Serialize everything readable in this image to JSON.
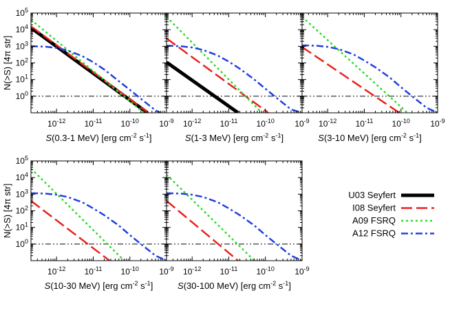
{
  "figure": {
    "ylabel": "N(>S) [4π str]",
    "legend": [
      {
        "name": "U03 Seyfert",
        "color": "#000000",
        "dash": "solid",
        "width": 5
      },
      {
        "name": "I08 Seyfert",
        "color": "#e8211c",
        "dash": "long-dash",
        "width": 2.5
      },
      {
        "name": "A09 FSRQ",
        "color": "#2cdc26",
        "dash": "dot",
        "width": 2.5
      },
      {
        "name": "A12 FSRQ",
        "color": "#1f3fe0",
        "dash": "dash-dot",
        "width": 2.5
      }
    ],
    "reference_line": {
      "y": 1,
      "color": "#000000",
      "style": "dash-dot-dot"
    },
    "y_ticks": [
      {
        "v": 1,
        "label": "10",
        "exp": "0"
      },
      {
        "v": 10,
        "label": "10",
        "exp": "1"
      },
      {
        "v": 100,
        "label": "10",
        "exp": "2"
      },
      {
        "v": 1000,
        "label": "10",
        "exp": "3"
      },
      {
        "v": 10000,
        "label": "10",
        "exp": "4"
      },
      {
        "v": 100000,
        "label": "10",
        "exp": "5"
      }
    ],
    "x_ticks": [
      {
        "v": 1e-12,
        "label": "10",
        "exp": "-12"
      },
      {
        "v": 1e-11,
        "label": "10",
        "exp": "-11"
      },
      {
        "v": 1e-10,
        "label": "10",
        "exp": "-10"
      },
      {
        "v": 1e-09,
        "label": "10",
        "exp": "-9"
      }
    ]
  },
  "chart_data": [
    {
      "type": "line",
      "panel": 1,
      "xscale": "log",
      "yscale": "log",
      "xlim": [
        2e-13,
        1e-09
      ],
      "ylim": [
        0.1,
        100000
      ],
      "xlabel": "S(0.3-1 MeV) [erg cm-2 s-1]",
      "xlabel_parts": [
        {
          "t": "S",
          "i": true
        },
        {
          "t": "(0.3-1 MeV) [erg cm"
        },
        {
          "t": "-2",
          "sup": true
        },
        {
          "t": " s"
        },
        {
          "t": "-1",
          "sup": true
        },
        {
          "t": "]"
        }
      ],
      "series": [
        {
          "name": "U03 Seyfert",
          "x": [
            2e-13,
            3e-10
          ],
          "y": [
            13000,
            0.1
          ]
        },
        {
          "name": "I08 Seyfert",
          "x": [
            2e-13,
            3.2e-10
          ],
          "y": [
            16000,
            0.1
          ]
        },
        {
          "name": "A09 FSRQ",
          "x": [
            2e-13,
            2.4e-10
          ],
          "y": [
            40000,
            0.1
          ]
        },
        {
          "name": "A12 FSRQ",
          "x": [
            2e-13,
            5e-13,
            1e-12,
            2e-12,
            5e-12,
            1e-11,
            2e-11,
            5e-11,
            1e-10,
            2e-10,
            5e-10,
            7e-10
          ],
          "y": [
            1020,
            950,
            800,
            560,
            260,
            110,
            40,
            8,
            2.4,
            0.7,
            0.14,
            0.1
          ]
        }
      ]
    },
    {
      "type": "line",
      "panel": 2,
      "xscale": "log",
      "yscale": "log",
      "xlim": [
        2e-13,
        1e-09
      ],
      "ylim": [
        0.1,
        100000
      ],
      "xlabel": "S(1-3 MeV) [erg cm-2 s-1]",
      "xlabel_parts": [
        {
          "t": "S",
          "i": true
        },
        {
          "t": "(1-3 MeV) [erg cm"
        },
        {
          "t": "-2",
          "sup": true
        },
        {
          "t": " s"
        },
        {
          "t": "-1",
          "sup": true
        },
        {
          "t": "]"
        }
      ],
      "series": [
        {
          "name": "U03 Seyfert",
          "x": [
            2e-13,
            1.8e-11
          ],
          "y": [
            110,
            0.1
          ]
        },
        {
          "name": "I08 Seyfert",
          "x": [
            2e-13,
            1.2e-10
          ],
          "y": [
            3000,
            0.1
          ]
        },
        {
          "name": "A09 FSRQ",
          "x": [
            2e-13,
            8e-11
          ],
          "y": [
            60000,
            0.1
          ]
        },
        {
          "name": "A12 FSRQ",
          "x": [
            2e-13,
            5e-13,
            1e-12,
            2e-12,
            5e-12,
            1e-11,
            2e-11,
            5e-11,
            1e-10,
            2e-10,
            5e-10,
            1e-09
          ],
          "y": [
            1100,
            1000,
            850,
            600,
            280,
            120,
            45,
            10,
            2.8,
            0.8,
            0.16,
            0.1
          ]
        }
      ]
    },
    {
      "type": "line",
      "panel": 3,
      "xscale": "log",
      "yscale": "log",
      "xlim": [
        2e-13,
        1e-09
      ],
      "ylim": [
        0.1,
        100000
      ],
      "xlabel": "S(3-10 MeV) [erg cm-2 s-1]",
      "xlabel_parts": [
        {
          "t": "S",
          "i": true
        },
        {
          "t": "(3-10 MeV) [erg cm"
        },
        {
          "t": "-2",
          "sup": true
        },
        {
          "t": " s"
        },
        {
          "t": "-1",
          "sup": true
        },
        {
          "t": "]"
        }
      ],
      "series": [
        {
          "name": "I08 Seyfert",
          "x": [
            2e-13,
            9e-11
          ],
          "y": [
            900,
            0.1
          ]
        },
        {
          "name": "A09 FSRQ",
          "x": [
            2e-13,
            1.5e-10
          ],
          "y": [
            60000,
            0.1
          ]
        },
        {
          "name": "A12 FSRQ",
          "x": [
            2e-13,
            5e-13,
            1e-12,
            2e-12,
            5e-12,
            1e-11,
            2e-11,
            5e-11,
            1e-10,
            2e-10,
            5e-10,
            1e-09
          ],
          "y": [
            1150,
            1080,
            930,
            680,
            330,
            140,
            55,
            13,
            3.5,
            1,
            0.2,
            0.1
          ]
        }
      ]
    },
    {
      "type": "line",
      "panel": 4,
      "xscale": "log",
      "yscale": "log",
      "xlim": [
        2e-13,
        1e-09
      ],
      "ylim": [
        0.1,
        100000
      ],
      "xlabel": "S(10-30 MeV) [erg cm-2 s-1]",
      "xlabel_parts": [
        {
          "t": "S",
          "i": true
        },
        {
          "t": "(10-30 MeV) [erg cm"
        },
        {
          "t": "-2",
          "sup": true
        },
        {
          "t": " s"
        },
        {
          "t": "-1",
          "sup": true
        },
        {
          "t": "]"
        }
      ],
      "series": [
        {
          "name": "I08 Seyfert",
          "x": [
            2e-13,
            2.8e-11
          ],
          "y": [
            400,
            0.1
          ]
        },
        {
          "name": "A09 FSRQ",
          "x": [
            2e-13,
            7e-11
          ],
          "y": [
            35000,
            0.1
          ]
        },
        {
          "name": "A12 FSRQ",
          "x": [
            2e-13,
            5e-13,
            1e-12,
            2e-12,
            5e-12,
            1e-11,
            2e-11,
            5e-11,
            1e-10,
            2e-10,
            5e-10,
            1e-09
          ],
          "y": [
            1150,
            1080,
            930,
            680,
            330,
            140,
            55,
            13,
            3.5,
            1,
            0.2,
            0.1
          ]
        }
      ]
    },
    {
      "type": "line",
      "panel": 5,
      "xscale": "log",
      "yscale": "log",
      "xlim": [
        2e-13,
        1e-09
      ],
      "ylim": [
        0.1,
        100000
      ],
      "xlabel": "S(30-100 MeV) [erg cm-2 s-1]",
      "xlabel_parts": [
        {
          "t": "S",
          "i": true
        },
        {
          "t": "(30-100 MeV) [erg cm"
        },
        {
          "t": "-2",
          "sup": true
        },
        {
          "t": " s"
        },
        {
          "t": "-1",
          "sup": true
        },
        {
          "t": "]"
        }
      ],
      "series": [
        {
          "name": "I08 Seyfert",
          "x": [
            2e-13,
            1.8e-11
          ],
          "y": [
            400,
            0.1
          ]
        },
        {
          "name": "A09 FSRQ",
          "x": [
            2e-13,
            5e-11
          ],
          "y": [
            15000,
            0.1
          ]
        },
        {
          "name": "A12 FSRQ",
          "x": [
            2e-13,
            5e-13,
            1e-12,
            2e-12,
            5e-12,
            1e-11,
            2e-11,
            5e-11,
            1e-10,
            2e-10,
            5e-10,
            1e-09
          ],
          "y": [
            1150,
            1080,
            930,
            680,
            330,
            140,
            55,
            13,
            3.5,
            1,
            0.2,
            0.1
          ]
        }
      ]
    }
  ]
}
